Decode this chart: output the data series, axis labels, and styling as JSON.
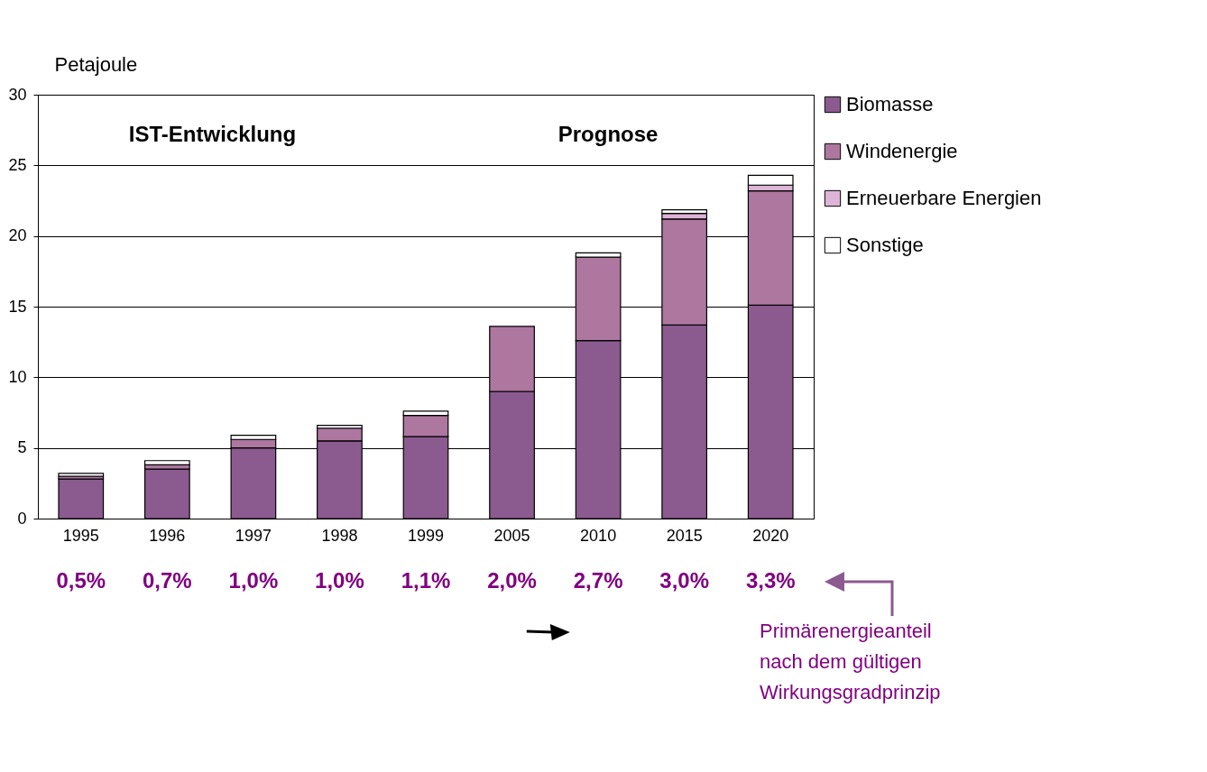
{
  "chart_data": {
    "type": "bar",
    "stacked": true,
    "ylabel": "Petajoule",
    "categories": [
      "1995",
      "1996",
      "1997",
      "1998",
      "1999",
      "2005",
      "2010",
      "2015",
      "2020"
    ],
    "series": [
      {
        "name": "Biomasse",
        "color": "#8b5a8f",
        "values": [
          2.8,
          3.5,
          5.0,
          5.5,
          5.8,
          9.0,
          12.6,
          13.7,
          15.1
        ]
      },
      {
        "name": "Windenergie",
        "color": "#ad77a0",
        "values": [
          0.2,
          0.3,
          0.6,
          0.9,
          1.5,
          4.6,
          5.9,
          7.5,
          8.1
        ]
      },
      {
        "name": "Erneuerbare Energien",
        "color": "#ddb3d6",
        "values": [
          0,
          0,
          0,
          0,
          0,
          0,
          0,
          0.4,
          0.4
        ]
      },
      {
        "name": "Sonstige",
        "color": "#ffffff",
        "values": [
          0.2,
          0.3,
          0.3,
          0.2,
          0.3,
          0,
          0.3,
          0.25,
          0.7
        ]
      }
    ],
    "ylim": [
      0,
      30
    ],
    "yticks": [
      0,
      5,
      10,
      15,
      20,
      25,
      30
    ],
    "grid": "y",
    "legend": "right",
    "annotations": [
      "IST-Entwicklung",
      "Prognose",
      "0,5%",
      "0,7%",
      "1,0%",
      "1,0%",
      "1,1%",
      "2,0%",
      "2,7%",
      "3,0%",
      "3,3%",
      "Primärenergieanteil\nnach dem gültigen\nWirkungsgradprinzip"
    ]
  }
}
